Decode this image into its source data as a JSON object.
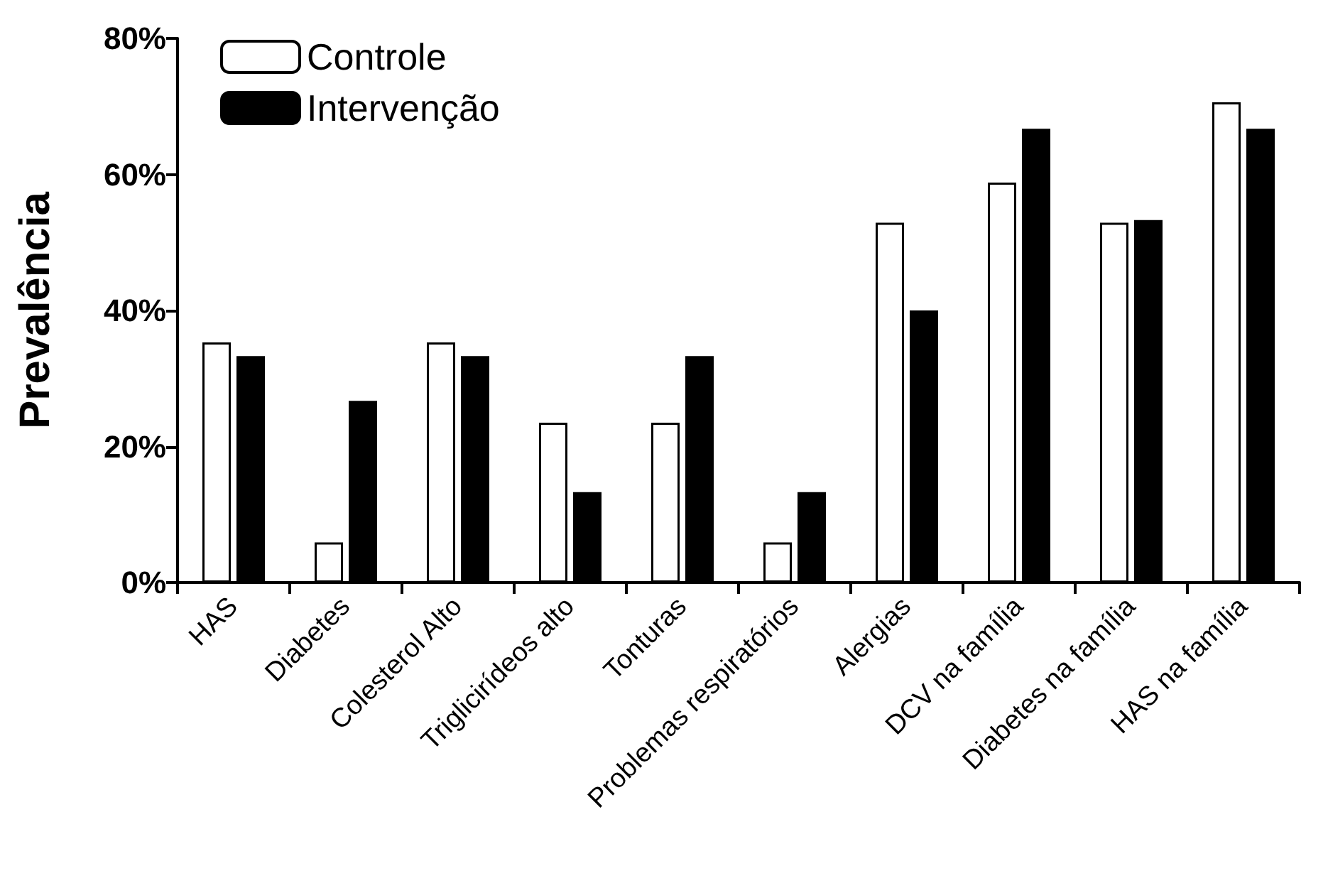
{
  "chart_data": {
    "type": "bar",
    "ylabel": "Prevalência",
    "categories": [
      "HAS",
      "Diabetes",
      "Colesterol Alto",
      "Triglicirídeos alto",
      "Tonturas",
      "Problemas respiratórios",
      "Alergias",
      "DCV na família",
      "Diabetes na família",
      "HAS na família"
    ],
    "series": [
      {
        "name": "Controle",
        "color": "#ffffff",
        "values": [
          35.3,
          5.9,
          35.3,
          23.5,
          23.5,
          5.9,
          52.9,
          58.8,
          52.9,
          70.6
        ]
      },
      {
        "name": "Intervenção",
        "color": "#000000",
        "values": [
          33.3,
          26.7,
          33.3,
          13.3,
          33.3,
          13.3,
          40.0,
          66.7,
          53.3,
          66.7
        ]
      }
    ],
    "ylim": [
      0,
      80
    ],
    "yticks": [
      {
        "value": 0,
        "label": "0%"
      },
      {
        "value": 20,
        "label": "20%"
      },
      {
        "value": 40,
        "label": "40%"
      },
      {
        "value": 60,
        "label": "60%"
      },
      {
        "value": 80,
        "label": "80%"
      }
    ],
    "grid": false,
    "legend": "top left"
  }
}
